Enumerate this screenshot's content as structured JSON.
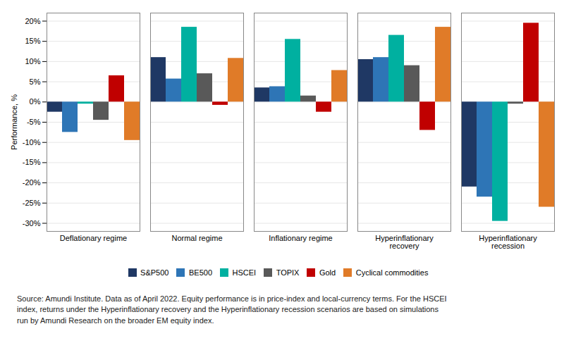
{
  "chart_data": {
    "type": "bar",
    "categories": [
      "Deflationary regime",
      "Normal regime",
      "Inflationary regime",
      "Hyperinflationary\nrecovery",
      "Hyperinflationary\nrecession"
    ],
    "series": [
      {
        "name": "S&P500",
        "color": "#1f3864",
        "values": [
          -2.5,
          11.0,
          3.5,
          10.5,
          -21.0
        ]
      },
      {
        "name": "BE500",
        "color": "#2e75b6",
        "values": [
          -7.5,
          5.7,
          3.8,
          11.0,
          -23.5
        ]
      },
      {
        "name": "HSCEI",
        "color": "#00b0a0",
        "values": [
          -0.5,
          18.5,
          15.5,
          16.5,
          -29.5
        ]
      },
      {
        "name": "TOPIX",
        "color": "#595959",
        "values": [
          -4.5,
          7.0,
          1.5,
          9.0,
          -0.5
        ]
      },
      {
        "name": "Gold",
        "color": "#c00000",
        "values": [
          6.5,
          -0.8,
          -2.5,
          -7.0,
          19.5
        ]
      },
      {
        "name": "Cyclical commodities",
        "color": "#e07b28",
        "values": [
          -9.5,
          10.8,
          7.8,
          18.5,
          -26.0
        ]
      }
    ],
    "ylabel": "Performance, %",
    "ylim": [
      -32,
      22
    ],
    "yticks": [
      {
        "value": -30,
        "label": "-30%"
      },
      {
        "value": -25,
        "label": "-25%"
      },
      {
        "value": -20,
        "label": "-20%"
      },
      {
        "value": -15,
        "label": "-15%"
      },
      {
        "value": -10,
        "label": "-10%"
      },
      {
        "value": -5,
        "label": "-5%"
      },
      {
        "value": 0,
        "label": "0%"
      },
      {
        "value": 5,
        "label": "5%"
      },
      {
        "value": 10,
        "label": "10%"
      },
      {
        "value": 15,
        "label": "15%"
      },
      {
        "value": 20,
        "label": "20%"
      }
    ],
    "grid": true,
    "legend": "bottom",
    "annotations": [
      "Source: Amundi Institute. Data as of April 2022. Equity performance is in price-index and local-currency terms. For the HSCEI\nindex, returns under the Hyperinflationary recovery and the Hyperinflationary recession scenarios are based on simulations\nrun by Amundi Research on the broader EM equity index."
    ]
  }
}
